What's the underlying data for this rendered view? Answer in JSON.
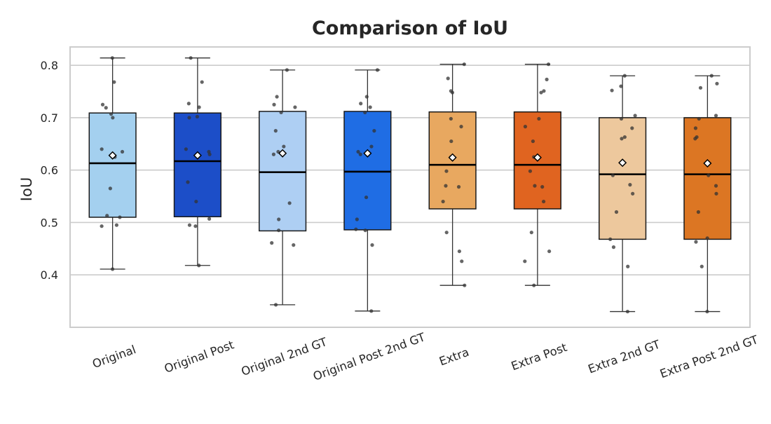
{
  "chart_data": {
    "type": "box",
    "title": "Comparison of IoU",
    "xlabel": "",
    "ylabel": "IoU",
    "ylim": [
      0.3,
      0.835
    ],
    "yticks": [
      0.4,
      0.5,
      0.6,
      0.7,
      0.8
    ],
    "grid": "horizontal",
    "categories": [
      "Original",
      "Original Post",
      "Original 2nd GT",
      "Original Post 2nd GT",
      "Extra",
      "Extra Post",
      "Extra 2nd GT",
      "Extra Post 2nd GT"
    ],
    "boxes": [
      {
        "category": "Original",
        "color": "#a4d0ef",
        "min": 0.411,
        "q1": 0.51,
        "median": 0.613,
        "q3": 0.709,
        "max": 0.814,
        "mean": 0.628,
        "points": [
          0.814,
          0.768,
          0.725,
          0.719,
          0.707,
          0.7,
          0.64,
          0.635,
          0.625,
          0.565,
          0.513,
          0.51,
          0.495,
          0.493,
          0.411
        ]
      },
      {
        "category": "Original Post",
        "color": "#1c4ec8",
        "min": 0.418,
        "q1": 0.511,
        "median": 0.617,
        "q3": 0.709,
        "max": 0.814,
        "mean": 0.628,
        "points": [
          0.814,
          0.768,
          0.727,
          0.72,
          0.702,
          0.7,
          0.64,
          0.635,
          0.63,
          0.577,
          0.54,
          0.507,
          0.495,
          0.493,
          0.418
        ]
      },
      {
        "category": "Original 2nd GT",
        "color": "#aecff3",
        "min": 0.343,
        "q1": 0.484,
        "median": 0.596,
        "q3": 0.712,
        "max": 0.791,
        "mean": 0.632,
        "points": [
          0.791,
          0.74,
          0.725,
          0.72,
          0.71,
          0.675,
          0.645,
          0.635,
          0.63,
          0.537,
          0.506,
          0.485,
          0.461,
          0.457,
          0.343
        ]
      },
      {
        "category": "Original Post 2nd GT",
        "color": "#1f6de4",
        "min": 0.331,
        "q1": 0.486,
        "median": 0.597,
        "q3": 0.712,
        "max": 0.791,
        "mean": 0.632,
        "points": [
          0.791,
          0.74,
          0.727,
          0.72,
          0.71,
          0.675,
          0.645,
          0.635,
          0.63,
          0.548,
          0.506,
          0.487,
          0.485,
          0.457,
          0.331
        ]
      },
      {
        "category": "Extra",
        "color": "#e8a860",
        "min": 0.38,
        "q1": 0.526,
        "median": 0.61,
        "q3": 0.711,
        "max": 0.802,
        "mean": 0.624,
        "points": [
          0.802,
          0.775,
          0.751,
          0.748,
          0.698,
          0.683,
          0.655,
          0.625,
          0.598,
          0.57,
          0.568,
          0.54,
          0.481,
          0.445,
          0.426,
          0.38
        ]
      },
      {
        "category": "Extra Post",
        "color": "#e06420",
        "min": 0.38,
        "q1": 0.526,
        "median": 0.61,
        "q3": 0.711,
        "max": 0.802,
        "mean": 0.624,
        "points": [
          0.802,
          0.773,
          0.751,
          0.748,
          0.698,
          0.683,
          0.655,
          0.625,
          0.598,
          0.57,
          0.568,
          0.54,
          0.481,
          0.445,
          0.426,
          0.38
        ]
      },
      {
        "category": "Extra 2nd GT",
        "color": "#edc89d",
        "min": 0.33,
        "q1": 0.468,
        "median": 0.592,
        "q3": 0.7,
        "max": 0.78,
        "mean": 0.614,
        "points": [
          0.78,
          0.76,
          0.752,
          0.704,
          0.698,
          0.68,
          0.663,
          0.66,
          0.59,
          0.572,
          0.555,
          0.52,
          0.468,
          0.453,
          0.416,
          0.33
        ]
      },
      {
        "category": "Extra Post 2nd GT",
        "color": "#dc7623",
        "min": 0.33,
        "q1": 0.468,
        "median": 0.592,
        "q3": 0.7,
        "max": 0.78,
        "mean": 0.613,
        "points": [
          0.78,
          0.765,
          0.757,
          0.704,
          0.698,
          0.68,
          0.663,
          0.66,
          0.59,
          0.57,
          0.555,
          0.52,
          0.47,
          0.463,
          0.416,
          0.33
        ]
      }
    ]
  }
}
